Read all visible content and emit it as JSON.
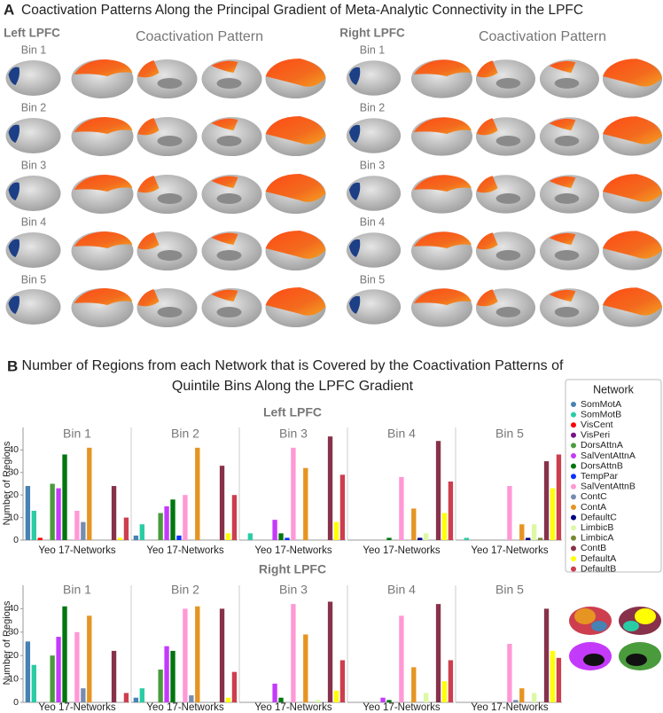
{
  "panel_a": {
    "label": "A",
    "title": "Coactivation Patterns Along the Principal Gradient of Meta-Analytic Connectivity in the LPFC",
    "left": {
      "title": "Left LPFC",
      "subtitle": "Coactivation Pattern",
      "bins": [
        "Bin 1",
        "Bin 2",
        "Bin 3",
        "Bin 4",
        "Bin 5"
      ]
    },
    "right": {
      "title": "Right LPFC",
      "subtitle": "Coactivation Pattern",
      "bins": [
        "Bin 1",
        "Bin 2",
        "Bin 3",
        "Bin 4",
        "Bin 5"
      ]
    }
  },
  "panel_b": {
    "label": "B",
    "title_lines": [
      "Number of Regions from each Network that is Covered by the Coactivation Patterns of",
      "Quintile Bins Along the LPFC Gradient"
    ]
  },
  "legend": {
    "title": "Network",
    "names": [
      "SomMotA",
      "SomMotB",
      "VisCent",
      "VisPeri",
      "DorsAttnA",
      "SalVentAttnA",
      "DorsAttnB",
      "TempPar",
      "SalVentAttnB",
      "ContC",
      "ContA",
      "DefaultC",
      "LimbicB",
      "LimbicA",
      "ContB",
      "DefaultA",
      "DefaultB"
    ],
    "colors": [
      "#4682b4",
      "#2accA4",
      "#ff0000",
      "#781286",
      "#4a9b3c",
      "#c43afa",
      "#00760e",
      "#0c30ff",
      "#ff98d5",
      "#778cb0",
      "#e69422",
      "#000082",
      "#dcf8a4",
      "#7a8732",
      "#87324a",
      "#ffff00",
      "#cd3e4e"
    ]
  },
  "chart_data": [
    {
      "type": "bar",
      "title": "Left LPFC",
      "ylabel": "Number of Regions",
      "ylim": [
        0,
        50
      ],
      "yticks": [
        0,
        10,
        20,
        30,
        40
      ],
      "panels": [
        {
          "title": "Bin 1",
          "xlabel": "Yeo 17-Networks",
          "values": [
            24,
            13,
            1,
            0,
            25,
            23,
            38,
            0,
            13,
            8,
            41,
            0,
            0,
            0,
            24,
            1,
            10
          ]
        },
        {
          "title": "Bin 2",
          "xlabel": "Yeo 17-Networks",
          "values": [
            2,
            7,
            0,
            0,
            12,
            15,
            18,
            2,
            20,
            0,
            41,
            0,
            0,
            0,
            33,
            3,
            20
          ]
        },
        {
          "title": "Bin 3",
          "xlabel": "Yeo 17-Networks",
          "values": [
            0,
            3,
            0,
            0,
            0,
            9,
            3,
            1,
            41,
            0,
            32,
            0,
            0,
            0,
            46,
            8,
            29
          ]
        },
        {
          "title": "Bin 4",
          "xlabel": "Yeo 17-Networks",
          "values": [
            0,
            0,
            0,
            0,
            0,
            0,
            1,
            0,
            28,
            0,
            14,
            1,
            3,
            0,
            44,
            12,
            26
          ]
        },
        {
          "title": "Bin 5",
          "xlabel": "Yeo 17-Networks",
          "values": [
            0,
            1,
            0,
            0,
            0,
            0,
            0,
            0,
            24,
            0,
            7,
            1,
            7,
            1,
            35,
            23,
            38
          ]
        }
      ]
    },
    {
      "type": "bar",
      "title": "Right LPFC",
      "ylabel": "Number of Regions",
      "ylim": [
        0,
        50
      ],
      "yticks": [
        0,
        10,
        20,
        30,
        40
      ],
      "panels": [
        {
          "title": "Bin 1",
          "xlabel": "Yeo 17-Networks",
          "values": [
            26,
            16,
            0,
            0,
            20,
            28,
            41,
            0,
            30,
            6,
            37,
            0,
            0,
            0,
            22,
            0,
            4
          ]
        },
        {
          "title": "Bin 2",
          "xlabel": "Yeo 17-Networks",
          "values": [
            2,
            6,
            0,
            0,
            14,
            24,
            22,
            0,
            40,
            3,
            41,
            0,
            0,
            0,
            40,
            2,
            13
          ]
        },
        {
          "title": "Bin 3",
          "xlabel": "Yeo 17-Networks",
          "values": [
            0,
            0,
            0,
            0,
            0,
            8,
            2,
            0,
            42,
            0,
            29,
            0,
            1,
            0,
            43,
            5,
            18
          ]
        },
        {
          "title": "Bin 4",
          "xlabel": "Yeo 17-Networks",
          "values": [
            0,
            0,
            0,
            0,
            0,
            2,
            1,
            0,
            37,
            0,
            15,
            0,
            4,
            0,
            42,
            9,
            18
          ]
        },
        {
          "title": "Bin 5",
          "xlabel": "Yeo 17-Networks",
          "values": [
            0,
            0,
            0,
            0,
            0,
            0,
            0,
            0,
            25,
            1,
            6,
            0,
            4,
            0,
            40,
            22,
            19
          ]
        }
      ]
    }
  ]
}
